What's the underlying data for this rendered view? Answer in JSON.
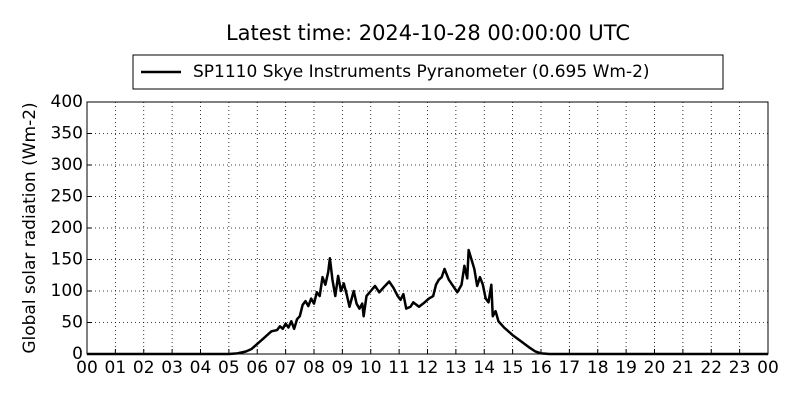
{
  "chart_data": {
    "type": "line",
    "title": "Latest time: 2024-10-28 00:00:00 UTC",
    "y_label": "Global solar radiation (Wm-2)",
    "grid": true,
    "legend_position": "top",
    "xlim": [
      0,
      24
    ],
    "ylim": [
      0,
      400
    ],
    "xticks": [
      {
        "value": 0,
        "label": "00"
      },
      {
        "value": 1,
        "label": "01"
      },
      {
        "value": 2,
        "label": "02"
      },
      {
        "value": 3,
        "label": "03"
      },
      {
        "value": 4,
        "label": "04"
      },
      {
        "value": 5,
        "label": "05"
      },
      {
        "value": 6,
        "label": "06"
      },
      {
        "value": 7,
        "label": "07"
      },
      {
        "value": 8,
        "label": "08"
      },
      {
        "value": 9,
        "label": "09"
      },
      10,
      11,
      12,
      13,
      14,
      15,
      16,
      17,
      18,
      19,
      20,
      21,
      22,
      23,
      {
        "value": 24,
        "label": "00"
      }
    ],
    "yticks": [
      0,
      50,
      100,
      150,
      200,
      250,
      300,
      350,
      400
    ],
    "x": [
      0,
      5.0,
      5.3,
      5.6,
      5.8,
      6.0,
      6.2,
      6.4,
      6.5,
      6.7,
      6.8,
      6.9,
      7.0,
      7.1,
      7.2,
      7.3,
      7.4,
      7.5,
      7.6,
      7.7,
      7.8,
      7.9,
      8.0,
      8.1,
      8.2,
      8.3,
      8.4,
      8.5,
      8.56,
      8.65,
      8.75,
      8.85,
      8.95,
      9.05,
      9.15,
      9.25,
      9.4,
      9.5,
      9.6,
      9.7,
      9.75,
      9.85,
      10.0,
      10.15,
      10.3,
      10.5,
      10.65,
      10.8,
      10.95,
      11.05,
      11.15,
      11.25,
      11.4,
      11.5,
      11.7,
      11.9,
      12.05,
      12.2,
      12.3,
      12.4,
      12.5,
      12.6,
      12.75,
      12.9,
      13.05,
      13.2,
      13.3,
      13.4,
      13.45,
      13.55,
      13.65,
      13.75,
      13.85,
      13.95,
      14.05,
      14.15,
      14.25,
      14.3,
      14.4,
      14.5,
      14.7,
      15.0,
      15.3,
      15.6,
      15.8,
      16.0,
      16.3,
      24
    ],
    "series": [
      {
        "name": "SP1110 Skye Instruments Pyranometer (0.695 Wm-2)",
        "color": "#000000",
        "values": [
          0,
          0,
          1,
          4,
          8,
          16,
          24,
          32,
          36,
          38,
          44,
          40,
          48,
          42,
          52,
          40,
          55,
          60,
          78,
          84,
          76,
          88,
          80,
          98,
          92,
          122,
          110,
          130,
          152,
          118,
          92,
          124,
          100,
          112,
          95,
          75,
          100,
          80,
          72,
          80,
          60,
          92,
          100,
          108,
          98,
          108,
          115,
          105,
          92,
          86,
          95,
          72,
          75,
          82,
          75,
          82,
          88,
          92,
          110,
          118,
          122,
          135,
          118,
          108,
          98,
          110,
          140,
          120,
          165,
          150,
          135,
          108,
          122,
          110,
          88,
          82,
          110,
          60,
          68,
          52,
          42,
          30,
          20,
          10,
          4,
          1,
          0,
          0
        ]
      }
    ]
  }
}
